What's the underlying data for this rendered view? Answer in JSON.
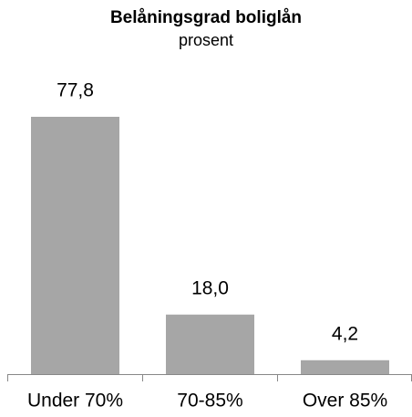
{
  "chart_data": {
    "type": "bar",
    "title": "Belåningsgrad boliglån",
    "subtitle": "prosent",
    "categories": [
      "Under 70%",
      "70-85%",
      "Over 85%"
    ],
    "values": [
      77.8,
      18.0,
      4.2
    ],
    "value_labels": [
      "77,8",
      "18,0",
      "4,2"
    ],
    "color": "#a6a6a6"
  }
}
